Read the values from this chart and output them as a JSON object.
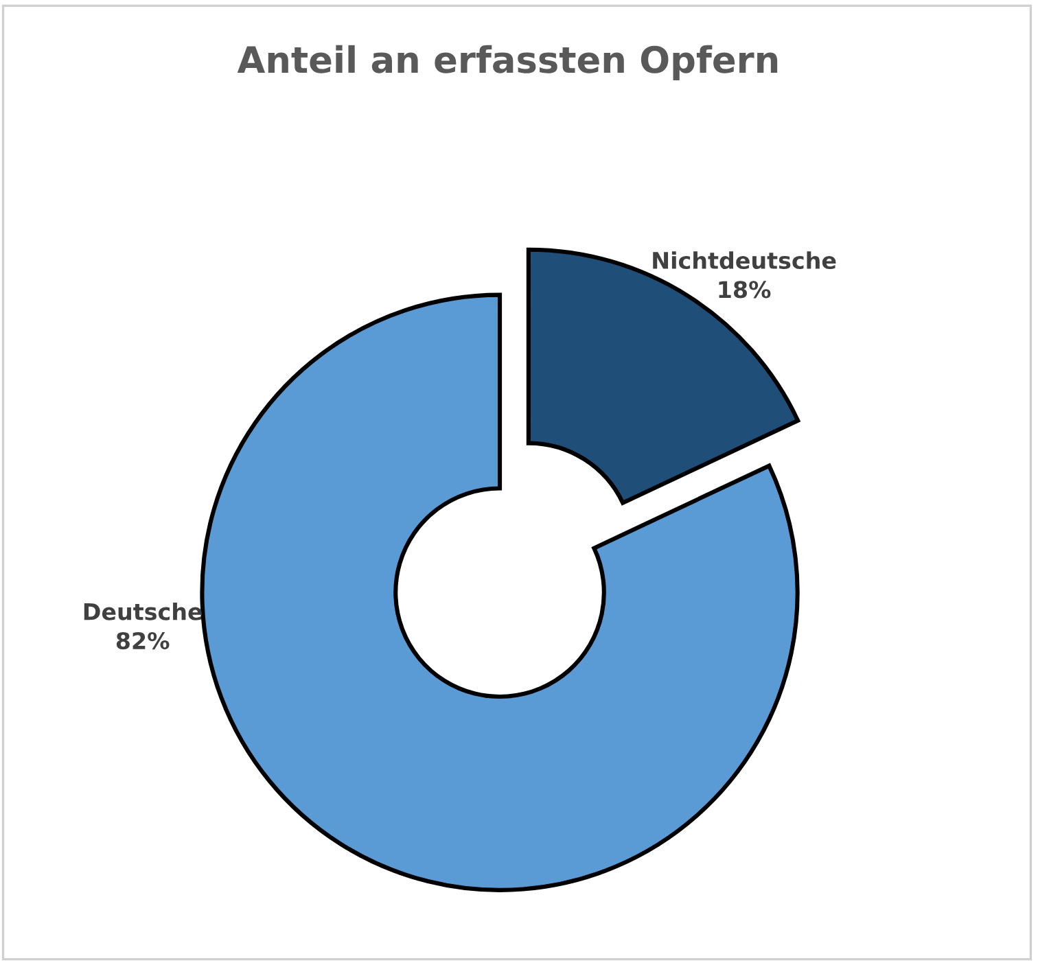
{
  "chart_data": {
    "type": "donut",
    "title": "Anteil an erfassten Opfern",
    "categories": [
      "Nichtdeutsche",
      "Deutsche"
    ],
    "values": [
      18,
      82
    ],
    "colors": [
      "#1f4e79",
      "#5b9bd5"
    ],
    "value_labels": [
      "18%",
      "82%"
    ]
  }
}
